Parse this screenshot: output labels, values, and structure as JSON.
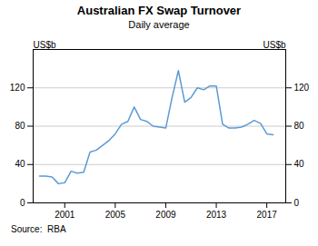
{
  "chart_data": {
    "type": "line",
    "title": "Australian FX Swap Turnover",
    "subtitle": "Daily average",
    "source": "Source:  RBA",
    "ylabel": "US$b",
    "y2label": "US$b",
    "color": "#5B9BD5",
    "x": [
      1999.0,
      1999.5,
      2000.0,
      2000.5,
      2001.0,
      2001.5,
      2002.0,
      2002.5,
      2003.0,
      2003.5,
      2004.0,
      2004.5,
      2005.0,
      2005.5,
      2006.0,
      2006.5,
      2007.0,
      2007.5,
      2008.0,
      2008.5,
      2009.0,
      2009.5,
      2010.0,
      2010.5,
      2011.0,
      2011.5,
      2012.0,
      2012.5,
      2013.0,
      2013.5,
      2014.0,
      2014.5,
      2015.0,
      2015.5,
      2016.0,
      2016.5,
      2017.0,
      2017.5
    ],
    "values": [
      28,
      28,
      27,
      20,
      21,
      33,
      31,
      32,
      53,
      55,
      60,
      65,
      72,
      82,
      85,
      100,
      87,
      85,
      80,
      79,
      78,
      110,
      138,
      105,
      110,
      120,
      118,
      122,
      122,
      82,
      78,
      78,
      79,
      82,
      86,
      83,
      72,
      71
    ],
    "xlim": [
      1998.5,
      2018.5
    ],
    "xticks": [
      2001,
      2005,
      2009,
      2013,
      2017
    ],
    "ylim": [
      0,
      160
    ],
    "yticks": [
      0,
      40,
      80,
      120
    ],
    "y2lim": [
      0,
      160
    ],
    "y2ticks": [
      0,
      40,
      80,
      120
    ],
    "grid": true
  }
}
